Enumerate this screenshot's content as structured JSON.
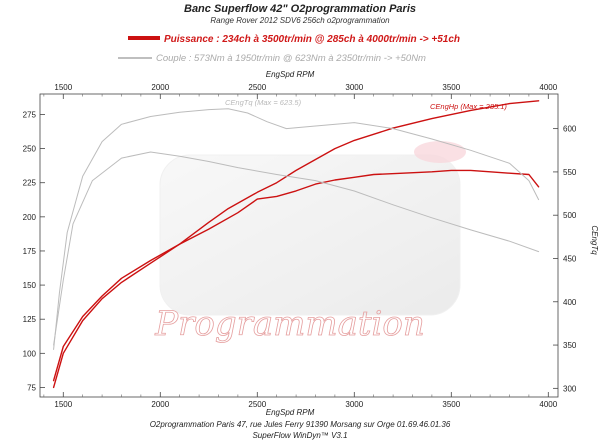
{
  "header": {
    "title": "Banc Superflow 42\" O2programmation Paris",
    "subtitle": "Range Rover 2012 SDV6 256ch o2programmation"
  },
  "legend": {
    "power_label": "Puissance : 234ch à 3500tr/min @ 285ch à 4000tr/min  -> +51ch",
    "torque_label": "Couple :  573Nm à 1950tr/min @ 623Nm à 2350tr/min -> +50Nm",
    "power_color": "#cc1111",
    "torque_color": "#aaaaaa"
  },
  "annotations": {
    "power_max": "CEngHp (Max = 285.1)",
    "torque_max": "CEngTq (Max = 623.5)"
  },
  "watermark": {
    "text": "Programmation"
  },
  "footer": {
    "line1": "O2programmation Paris 47, rue Jules Ferry 91390 Morsang sur Orge 01.69.46.01.36",
    "line2": "SuperFlow WinDyn™ V3.1"
  },
  "chart_data": {
    "type": "line",
    "xlabel": "EngSpd RPM",
    "xlabel_top": "EngSpd RPM",
    "ylabel_right": "CEngTq",
    "xlim": [
      1380,
      4050
    ],
    "ylim_left": [
      68,
      290
    ],
    "ylim_right": [
      290,
      640
    ],
    "x_ticks": [
      1500,
      2000,
      2500,
      3000,
      3500,
      4000
    ],
    "y_ticks_left": [
      75,
      100,
      125,
      150,
      175,
      200,
      225,
      250,
      275
    ],
    "y_ticks_right": [
      300,
      350,
      400,
      450,
      500,
      550,
      600
    ],
    "grid": false,
    "series": [
      {
        "role": "power_stock",
        "axis": "left",
        "color": "#cc1111",
        "x": [
          1450,
          1500,
          1600,
          1700,
          1800,
          1950,
          2100,
          2250,
          2400,
          2500,
          2600,
          2700,
          2800,
          2900,
          3000,
          3100,
          3250,
          3400,
          3500,
          3600,
          3700,
          3800,
          3900,
          3950
        ],
        "y": [
          80,
          105,
          127,
          142,
          155,
          168,
          180,
          191,
          203,
          213,
          215,
          219,
          224,
          227,
          229,
          231,
          232,
          233,
          234,
          234,
          233,
          232,
          231,
          222
        ]
      },
      {
        "role": "power_tuned",
        "axis": "left",
        "color": "#cc1111",
        "x": [
          1450,
          1500,
          1600,
          1700,
          1800,
          1950,
          2100,
          2250,
          2350,
          2500,
          2600,
          2700,
          2800,
          2900,
          3000,
          3200,
          3400,
          3600,
          3800,
          3950
        ],
        "y": [
          75,
          100,
          124,
          140,
          152,
          166,
          180,
          196,
          206,
          218,
          225,
          234,
          242,
          250,
          256,
          265,
          272,
          278,
          283,
          285
        ]
      },
      {
        "role": "torque_stock",
        "axis": "right",
        "color": "#bcbcbc",
        "x": [
          1450,
          1500,
          1550,
          1650,
          1800,
          1950,
          2100,
          2250,
          2400,
          2600,
          2800,
          3000,
          3200,
          3400,
          3600,
          3800,
          3950
        ],
        "y": [
          350,
          425,
          490,
          540,
          566,
          573,
          568,
          562,
          555,
          547,
          540,
          528,
          512,
          497,
          483,
          470,
          458
        ]
      },
      {
        "role": "torque_tuned",
        "axis": "right",
        "color": "#bcbcbc",
        "x": [
          1450,
          1480,
          1520,
          1600,
          1700,
          1800,
          1950,
          2100,
          2250,
          2350,
          2450,
          2550,
          2650,
          2800,
          3000,
          3200,
          3400,
          3600,
          3800,
          3900,
          3950
        ],
        "y": [
          345,
          410,
          480,
          545,
          585,
          605,
          614,
          619,
          622,
          623,
          618,
          608,
          600,
          603,
          607,
          600,
          588,
          575,
          560,
          540,
          518
        ]
      }
    ]
  }
}
